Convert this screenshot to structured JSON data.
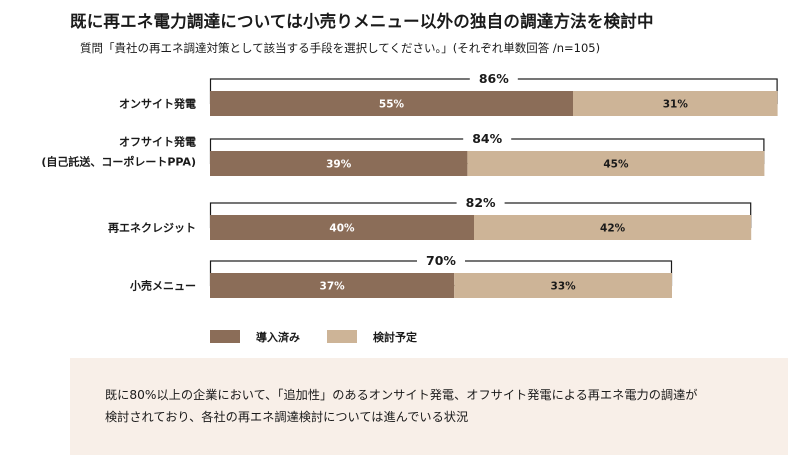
{
  "title": "既に再エネ電力調達については小売りメニュー以外の独自の調達方法を検討中",
  "subtitle": "質問「貴社の再エネ調達対策として該当する手段を選択してください。」(それぞれ単数回答 /n=105)",
  "colors": {
    "implemented": "#8b6d58",
    "planned": "#cdb497",
    "total_box": "#1a1a1a",
    "note_bg": "#f8efe8"
  },
  "chart_data": {
    "type": "bar",
    "orientation": "horizontal",
    "stacked": true,
    "title": "",
    "xlabel": "",
    "ylabel": "",
    "unit": "%",
    "xlim": [
      0,
      100
    ],
    "categories": [
      [
        "オンサイト発電"
      ],
      [
        "オフサイト発電",
        "(自己託送、コーポレートPPA)"
      ],
      [
        "再エネクレジット"
      ],
      [
        "小売メニュー"
      ]
    ],
    "series": [
      {
        "name": "導入済み",
        "values": [
          55,
          39,
          40,
          37
        ]
      },
      {
        "name": "検討予定",
        "values": [
          31,
          45,
          42,
          33
        ]
      }
    ],
    "totals": [
      86,
      84,
      82,
      70
    ],
    "legend_position": "bottom-left"
  },
  "note": {
    "lines": [
      "既に80%以上の企業において、「追加性」のあるオンサイト発電、オフサイト発電による再エネ電力の調達が",
      "検討されており、各社の再エネ調達検討については進んでいる状況"
    ]
  }
}
